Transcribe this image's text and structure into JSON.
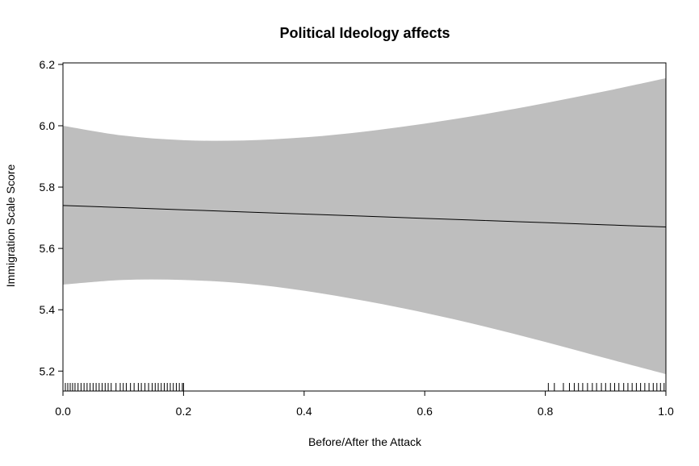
{
  "chart_data": {
    "type": "line",
    "title": "Political Ideology affects",
    "xlabel": "Before/After the Attack",
    "ylabel": "Immigration Scale Score",
    "xlim": [
      0.0,
      1.0
    ],
    "ylim": [
      5.135,
      6.205
    ],
    "x_ticks": [
      "0.0",
      "0.2",
      "0.4",
      "0.6",
      "0.8",
      "1.0"
    ],
    "y_ticks": [
      "5.2",
      "5.4",
      "5.6",
      "5.8",
      "6.0",
      "6.2"
    ],
    "grid": false,
    "colors": {
      "band": "#bebebe",
      "line": "#000000"
    },
    "series": [
      {
        "x": [
          0.0,
          0.1,
          0.2,
          0.3,
          0.4,
          0.5,
          0.6,
          0.7,
          0.8,
          0.9,
          1.0
        ],
        "fit": [
          5.74,
          5.733,
          5.726,
          5.719,
          5.712,
          5.705,
          5.698,
          5.691,
          5.684,
          5.677,
          5.67
        ],
        "upper": [
          6.0,
          5.968,
          5.953,
          5.952,
          5.962,
          5.981,
          6.007,
          6.038,
          6.074,
          6.113,
          6.155
        ],
        "lower": [
          5.482,
          5.497,
          5.497,
          5.486,
          5.462,
          5.429,
          5.39,
          5.345,
          5.295,
          5.242,
          5.19
        ]
      }
    ],
    "rug_x": [
      0.0,
      0.004,
      0.008,
      0.012,
      0.016,
      0.02,
      0.025,
      0.03,
      0.035,
      0.04,
      0.045,
      0.05,
      0.055,
      0.06,
      0.065,
      0.07,
      0.075,
      0.08,
      0.088,
      0.095,
      0.1,
      0.105,
      0.112,
      0.118,
      0.125,
      0.13,
      0.136,
      0.142,
      0.148,
      0.153,
      0.158,
      0.163,
      0.168,
      0.173,
      0.178,
      0.183,
      0.188,
      0.193,
      0.198,
      0.2,
      0.805,
      0.815,
      0.83,
      0.84,
      0.848,
      0.855,
      0.862,
      0.87,
      0.878,
      0.885,
      0.893,
      0.9,
      0.908,
      0.915,
      0.922,
      0.93,
      0.937,
      0.944,
      0.951,
      0.958,
      0.965,
      0.972,
      0.979,
      0.985,
      0.991,
      0.997,
      1.0
    ]
  }
}
